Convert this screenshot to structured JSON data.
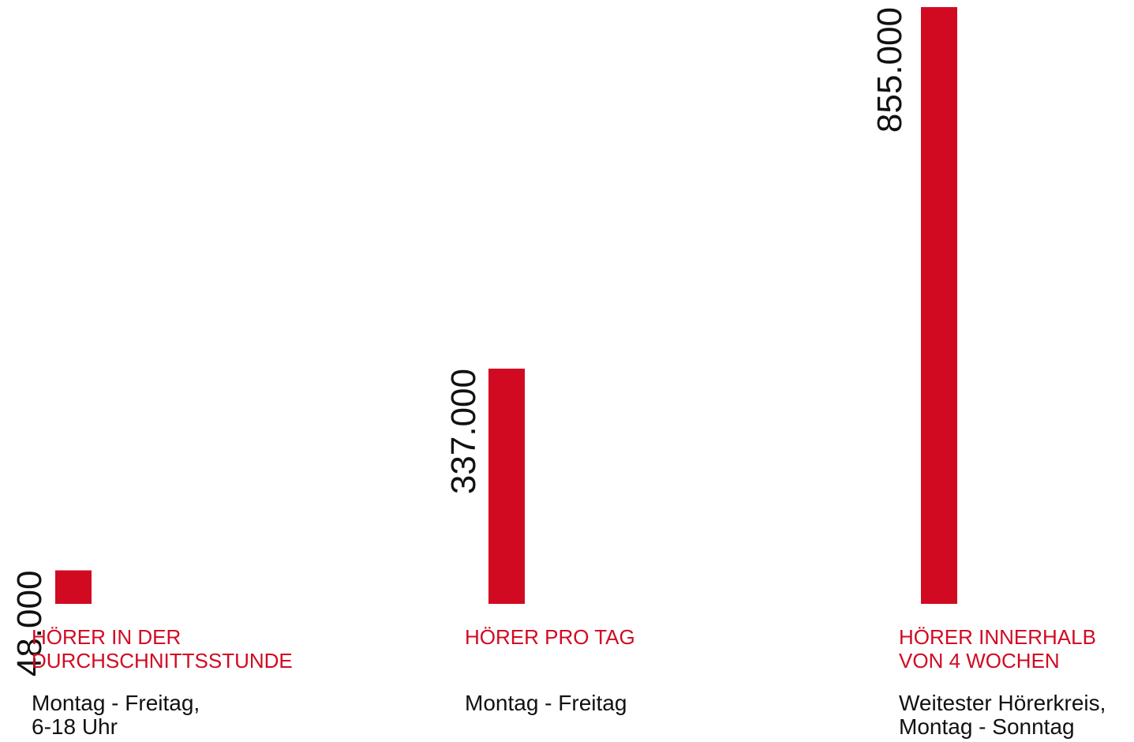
{
  "colors": {
    "bar": "#d10a22",
    "title_text": "#d10a22",
    "body_text": "#111111",
    "background": "#ffffff"
  },
  "chart_data": {
    "type": "bar",
    "categories": [
      "HÖRER IN DER\nDURCHSCHNITTSSTUNDE",
      "HÖRER PRO TAG",
      "HÖRER INNERHALB\nVON 4 WOCHEN"
    ],
    "values": [
      48000,
      337000,
      855000
    ],
    "value_labels": [
      "48.000",
      "337.000",
      "855.000"
    ],
    "descriptions": [
      "Montag - Freitag,\n6-18 Uhr",
      "Montag - Freitag",
      "Weitester Hörerkreis,\nMontag - Sonntag"
    ],
    "ylim": [
      0,
      855000
    ],
    "grid": false,
    "legend": "none"
  }
}
